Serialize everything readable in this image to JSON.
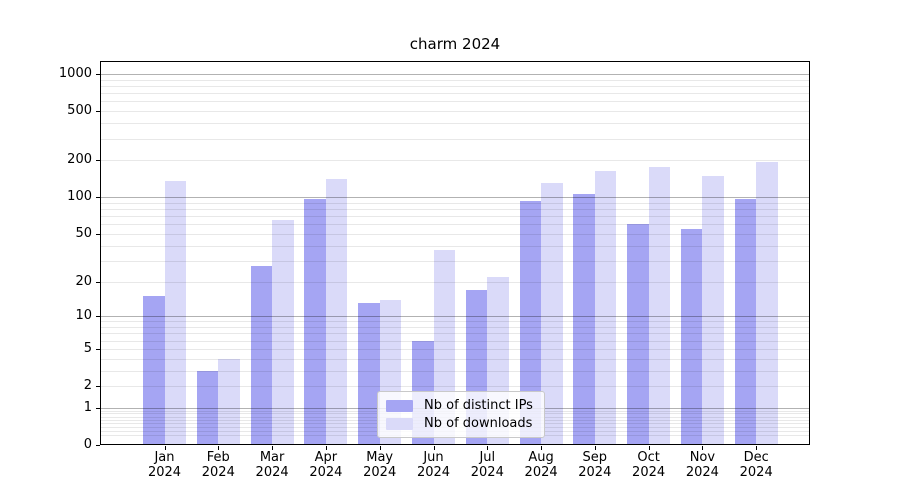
{
  "chart_data": {
    "type": "bar",
    "title": "charm 2024",
    "categories": [
      "Jan",
      "Feb",
      "Mar",
      "Apr",
      "May",
      "Jun",
      "Jul",
      "Aug",
      "Sep",
      "Oct",
      "Nov",
      "Dec"
    ],
    "x_tick_second_line": "2024",
    "series": [
      {
        "name": "Nb of distinct IPs",
        "color": "#a5a5f3",
        "values": [
          15,
          3,
          27,
          97,
          13,
          6,
          17,
          93,
          107,
          60,
          55,
          96
        ]
      },
      {
        "name": "Nb of downloads",
        "color": "#dadaf9",
        "values": [
          135,
          4,
          65,
          140,
          14,
          37,
          22,
          130,
          165,
          177,
          148,
          192
        ]
      }
    ],
    "yscale": "log10(1+v)",
    "ylim": [
      0,
      1273
    ],
    "y_ticks": [
      0,
      1,
      2,
      5,
      10,
      20,
      50,
      100,
      200,
      500,
      1000
    ],
    "y_major_gridlines": [
      1,
      10,
      100,
      1000
    ],
    "y_minor_decades": [
      0.1,
      1,
      10,
      100
    ],
    "grid": "major+minor, drawn above bars",
    "legend_position": "lower center"
  },
  "colors": {
    "background": "#ffffff",
    "spine": "#000000",
    "grid_major": "rgba(0,0,0,0.30)",
    "grid_minor": "rgba(0,0,0,0.09)",
    "legend_border": "#c9c9c9",
    "legend_background": "rgba(255,255,255,0.8)"
  }
}
